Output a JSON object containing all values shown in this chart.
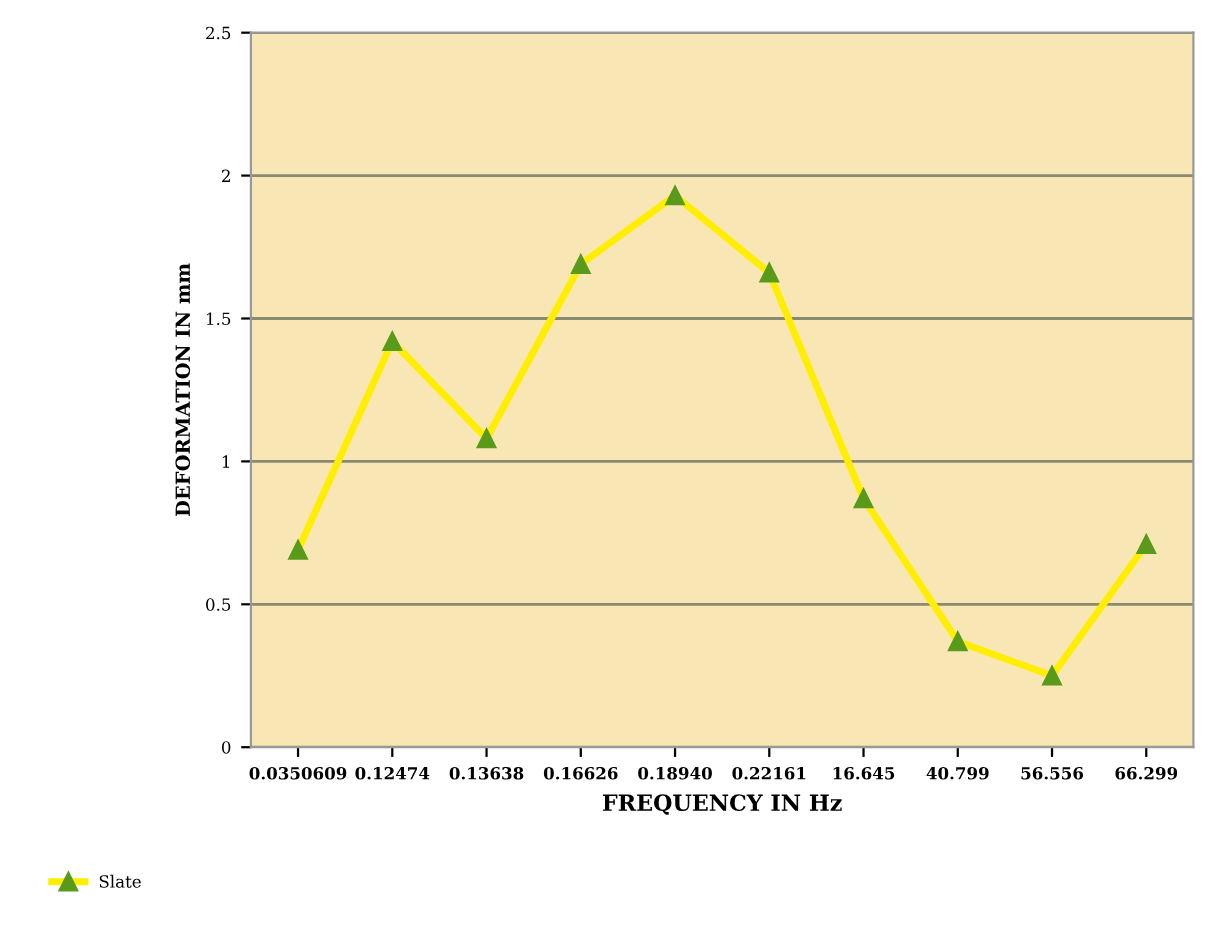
{
  "chart_data": {
    "type": "line",
    "xlabel": "FREQUENCY IN Hz",
    "ylabel": "DEFORMATION IN mm",
    "categories": [
      "0.0350609",
      "0.12474",
      "0.13638",
      "0.16626",
      "0.18940",
      "0.22161",
      "16.645",
      "40.799",
      "56.556",
      "66.299"
    ],
    "series": [
      {
        "name": "Slate",
        "color": "#ffee00",
        "values": [
          0.69,
          1.42,
          1.08,
          1.69,
          1.93,
          1.66,
          0.87,
          0.37,
          0.25,
          0.71
        ]
      }
    ],
    "ylim": [
      0,
      2.5
    ],
    "yticks": [
      0,
      0.5,
      1,
      1.5,
      2,
      2.5
    ],
    "grid": "y",
    "legend": "bottom left",
    "marker": "triangle"
  }
}
